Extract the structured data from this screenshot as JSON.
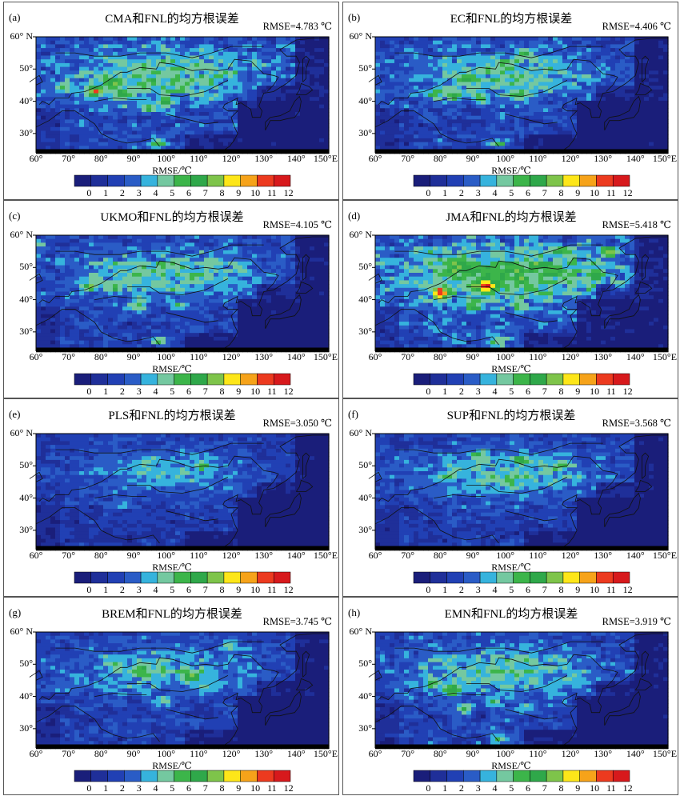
{
  "panels": [
    {
      "label": "(a)",
      "title": "CMA和FNL的均方根误差",
      "rmse": "RMSE=4.783 ℃",
      "seed": 11,
      "level": 0.62,
      "hot": [
        [
          78,
          43,
          7
        ],
        [
          86,
          42,
          4
        ],
        [
          98,
          27,
          4
        ],
        [
          84,
          45,
          3
        ],
        [
          95,
          38,
          3
        ],
        [
          100,
          40,
          3
        ],
        [
          68,
          44,
          3
        ]
      ]
    },
    {
      "label": "(b)",
      "title": "EC和FNL的均方根误差",
      "rmse": "RMSE=4.406 ℃",
      "seed": 23,
      "level": 0.52,
      "hot": [
        [
          84,
          42,
          5
        ],
        [
          98,
          27,
          4
        ],
        [
          78,
          42,
          4
        ],
        [
          92,
          41,
          3
        ],
        [
          104,
          42,
          3
        ],
        [
          106,
          55,
          3
        ],
        [
          88,
          47,
          3
        ]
      ]
    },
    {
      "label": "(c)",
      "title": "UKMO和FNL的均方根误差",
      "rmse": "RMSE=4.105 ℃",
      "seed": 37,
      "level": 0.5,
      "hot": [
        [
          76,
          44,
          5
        ],
        [
          98,
          27,
          4
        ],
        [
          91,
          38,
          4
        ],
        [
          104,
          38,
          3
        ],
        [
          60,
          57,
          3
        ],
        [
          84,
          44,
          3
        ]
      ]
    },
    {
      "label": "(d)",
      "title": "JMA和FNL的均方根误差",
      "rmse": "RMSE=5.418 ℃",
      "seed": 53,
      "level": 0.82,
      "hot": [
        [
          80,
          42,
          8
        ],
        [
          94,
          44,
          7
        ],
        [
          90,
          38,
          4
        ],
        [
          128,
          48,
          4
        ],
        [
          132,
          55,
          4
        ],
        [
          98,
          27,
          4
        ],
        [
          104,
          38,
          3
        ],
        [
          118,
          55,
          3
        ],
        [
          86,
          50,
          3
        ],
        [
          136,
          44,
          3
        ]
      ]
    },
    {
      "label": "(e)",
      "title": "PLS和FNL的均方根误差",
      "rmse": "RMSE=3.050 ℃",
      "seed": 71,
      "level": 0.3,
      "hot": [
        [
          95,
          52,
          2
        ],
        [
          112,
          50,
          2
        ],
        [
          88,
          38,
          2
        ]
      ]
    },
    {
      "label": "(f)",
      "title": "SUP和FNL的均方根误差",
      "rmse": "RMSE=3.568 ℃",
      "seed": 89,
      "level": 0.42,
      "hot": [
        [
          92,
          53,
          3
        ],
        [
          105,
          52,
          3
        ],
        [
          118,
          50,
          2
        ],
        [
          82,
          47,
          2
        ],
        [
          102,
          44,
          2
        ]
      ]
    },
    {
      "label": "(g)",
      "title": "BREM和FNL的均方根误差",
      "rmse": "RMSE=3.745 ℃",
      "seed": 97,
      "level": 0.42,
      "hot": [
        [
          92,
          48,
          3
        ],
        [
          108,
          46,
          3
        ],
        [
          120,
          56,
          3
        ],
        [
          84,
          50,
          2
        ],
        [
          100,
          38,
          2
        ]
      ]
    },
    {
      "label": "(h)",
      "title": "EMN和FNL的均方根误差",
      "rmse": "RMSE=3.919 ℃",
      "seed": 131,
      "level": 0.48,
      "hot": [
        [
          84,
          42,
          5
        ],
        [
          98,
          27,
          5
        ],
        [
          88,
          36,
          4
        ],
        [
          96,
          38,
          3
        ],
        [
          78,
          44,
          3
        ],
        [
          106,
          36,
          2
        ]
      ]
    }
  ],
  "map": {
    "lat_labels": [
      "60° N",
      "50°",
      "40°",
      "30°"
    ],
    "lat_values": [
      60,
      50,
      40,
      30
    ],
    "lon_labels": [
      "60°",
      "70°",
      "80°",
      "90°",
      "100°",
      "110°",
      "120°",
      "130°",
      "140°",
      "150°E"
    ],
    "lon_values": [
      60,
      70,
      80,
      90,
      100,
      110,
      120,
      130,
      140,
      150
    ],
    "lon_range": [
      60,
      150
    ],
    "lat_range": [
      25,
      60
    ]
  },
  "colorbar": {
    "title": "RMSE/℃",
    "ticks": [
      "0",
      "1",
      "2",
      "3",
      "4",
      "5",
      "6",
      "7",
      "8",
      "9",
      "10",
      "11",
      "12"
    ],
    "colors": [
      "#1a1e7a",
      "#1f2f99",
      "#2140b4",
      "#2a5cc6",
      "#36b3dd",
      "#74c8a0",
      "#3cb54a",
      "#2fa84a",
      "#7ec44a",
      "#fde619",
      "#f6a31a",
      "#ec3a1f",
      "#d7191c"
    ]
  }
}
